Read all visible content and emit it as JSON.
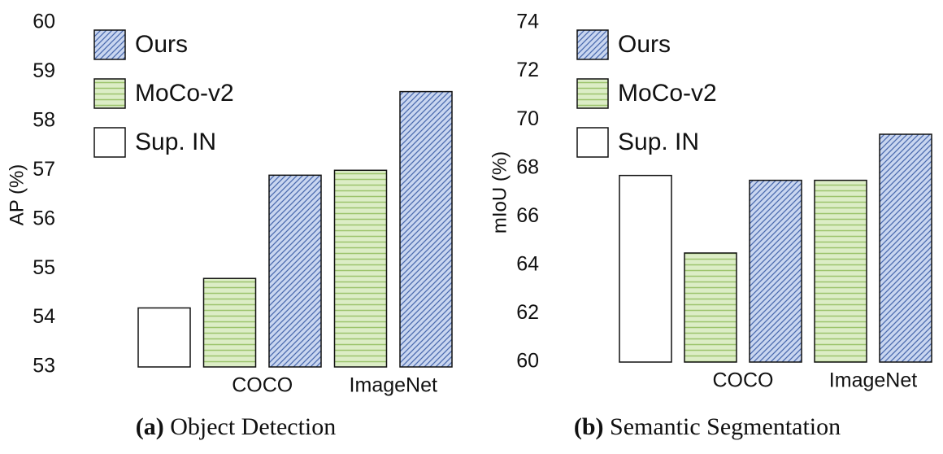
{
  "chart_data": [
    {
      "type": "bar",
      "caption_label": "(a)",
      "caption": "Object Detection",
      "y_label": "AP (%)",
      "categories": [
        null,
        "COCO",
        "ImageNet"
      ],
      "series": [
        {
          "name": "Ours",
          "color": "#c9d6f0",
          "hatch": "diagonal",
          "hatch_color": "#4a6aae",
          "values": [
            null,
            56.9,
            58.6
          ]
        },
        {
          "name": "MoCo-v2",
          "color": "#dcedc6",
          "hatch": "horizontal",
          "hatch_color": "#9cc46c",
          "values": [
            null,
            54.8,
            57.0
          ]
        },
        {
          "name": "Sup. IN",
          "color": "#ffffff",
          "hatch": null,
          "hatch_color": null,
          "values": [
            54.2,
            null,
            null
          ]
        }
      ],
      "ylim": [
        53,
        60
      ],
      "yticks": [
        53,
        54,
        55,
        56,
        57,
        58,
        59,
        60
      ],
      "grid": false,
      "legend": "upper left"
    },
    {
      "type": "bar",
      "caption_label": "(b)",
      "caption": "Semantic Segmentation",
      "y_label": "mIoU (%)",
      "categories": [
        null,
        "COCO",
        "ImageNet"
      ],
      "series": [
        {
          "name": "Ours",
          "color": "#c9d6f0",
          "hatch": "diagonal",
          "hatch_color": "#4a6aae",
          "values": [
            null,
            67.5,
            69.4
          ]
        },
        {
          "name": "MoCo-v2",
          "color": "#dcedc6",
          "hatch": "horizontal",
          "hatch_color": "#9cc46c",
          "values": [
            null,
            64.5,
            67.5
          ]
        },
        {
          "name": "Sup. IN",
          "color": "#ffffff",
          "hatch": null,
          "hatch_color": null,
          "values": [
            67.7,
            null,
            null
          ]
        }
      ],
      "ylim": [
        60,
        74
      ],
      "yticks": [
        60,
        62,
        64,
        66,
        68,
        70,
        72,
        74
      ],
      "grid": false,
      "legend": "upper left"
    }
  ]
}
